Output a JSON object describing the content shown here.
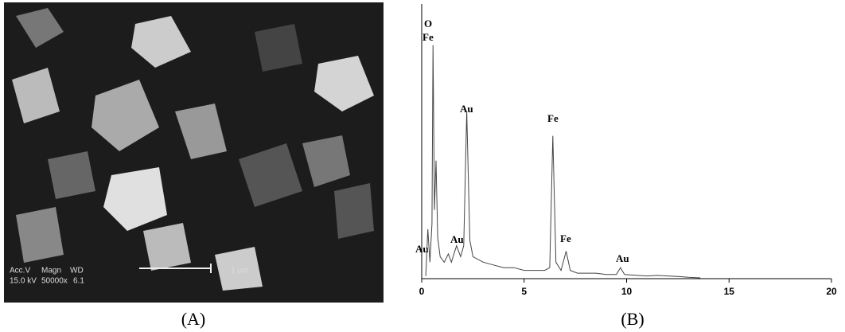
{
  "panel_a": {
    "label": "(A)",
    "info": [
      "Acc.V",
      "Magn",
      "WD",
      "15.0 kV",
      "50000x",
      "6.1"
    ],
    "scale_bar": "1 μm"
  },
  "panel_b": {
    "label": "(B)"
  },
  "chart_data": {
    "type": "line",
    "color": "#444",
    "x": [
      0.2,
      0.3,
      0.4,
      0.5,
      0.55,
      0.62,
      0.7,
      0.78,
      0.9,
      1.1,
      1.3,
      1.45,
      1.7,
      1.9,
      2.05,
      2.2,
      2.35,
      2.5,
      3,
      3.5,
      4,
      4.5,
      5,
      5.5,
      6,
      6.25,
      6.4,
      6.55,
      6.8,
      7.05,
      7.25,
      7.6,
      8,
      8.5,
      9,
      9.5,
      9.7,
      9.9,
      10.5,
      11,
      11.5,
      12,
      12.5,
      13,
      13.6
    ],
    "values": [
      1,
      18,
      6,
      20,
      85,
      25,
      43,
      15,
      8,
      6,
      9,
      6,
      12,
      8,
      12,
      61,
      14,
      8,
      6,
      5,
      4,
      4,
      3,
      3,
      3,
      4,
      52,
      6,
      3,
      10,
      3,
      2,
      2,
      2,
      1.5,
      1.5,
      4,
      1.5,
      1.2,
      1,
      1.2,
      1,
      0.8,
      0.5,
      0.3
    ],
    "xlim": [
      0,
      20
    ],
    "ylim": [
      0,
      100
    ],
    "xticks": [
      0,
      5,
      10,
      15,
      20
    ],
    "annotations": [
      "O",
      "Fe",
      "Au",
      "Au",
      "Au",
      "Fe",
      "Fe",
      "Au"
    ]
  }
}
